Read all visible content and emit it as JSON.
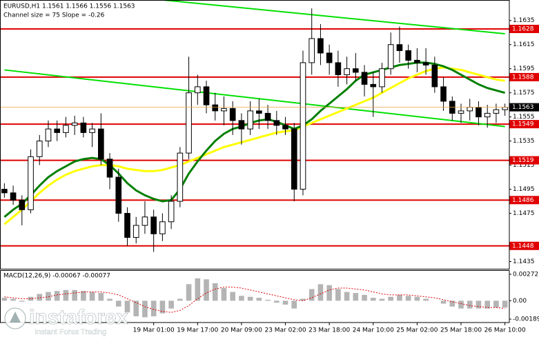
{
  "chart_data": {
    "type": "candlestick",
    "title": "EURUSD,H1  1.1561 1.1566 1.1556 1.1563",
    "subtitle": "Channel size = 75 Slope = -0.26",
    "categories": [
      null,
      null,
      null,
      null,
      null,
      null,
      null,
      null,
      null,
      null,
      null,
      null,
      null,
      null,
      null,
      null,
      null,
      "19 Mar 01:00",
      null,
      null,
      null,
      null,
      "19 Mar 17:00",
      null,
      null,
      null,
      null,
      "20 Mar 09:00",
      null,
      null,
      null,
      null,
      "23 Mar 02:00",
      null,
      null,
      null,
      null,
      "23 Mar 18:00",
      null,
      null,
      null,
      null,
      "24 Mar 10:00",
      null,
      null,
      null,
      null,
      "25 Mar 02:00",
      null,
      null,
      null,
      null,
      "25 Mar 18:00",
      null,
      null,
      null,
      null,
      "26 Mar 10:00"
    ],
    "open": [
      1.1495,
      1.1492,
      1.1486,
      1.1478,
      1.1522,
      1.1535,
      1.1545,
      1.1542,
      1.1548,
      1.155,
      1.1542,
      1.1545,
      1.152,
      1.1505,
      1.1475,
      1.1455,
      1.1465,
      1.1472,
      1.1458,
      1.1468,
      1.1485,
      1.1525,
      1.1575,
      1.158,
      1.1565,
      1.156,
      1.1562,
      1.1552,
      1.1545,
      1.156,
      1.1558,
      1.1552,
      1.1548,
      1.1545,
      1.1495,
      1.16,
      1.162,
      1.1608,
      1.16,
      1.159,
      1.1595,
      1.1592,
      1.1582,
      1.158,
      1.1595,
      1.1615,
      1.161,
      1.1602,
      1.16,
      1.1598,
      1.158,
      1.1568,
      1.1558,
      1.156,
      1.1563,
      1.1555,
      1.1558,
      1.1561
    ],
    "high": [
      1.15,
      1.1498,
      1.149,
      1.1528,
      1.154,
      1.1552,
      1.1552,
      1.1555,
      1.1556,
      1.1555,
      1.155,
      1.1558,
      1.1525,
      1.1512,
      1.148,
      1.1472,
      1.1485,
      1.1478,
      1.1475,
      1.149,
      1.153,
      1.1605,
      1.159,
      1.1585,
      1.1575,
      1.1572,
      1.1568,
      1.1558,
      1.1568,
      1.157,
      1.1565,
      1.156,
      1.1555,
      1.155,
      1.161,
      1.1645,
      1.1632,
      1.1615,
      1.161,
      1.1605,
      1.1608,
      1.1598,
      1.1592,
      1.16,
      1.1625,
      1.163,
      1.1615,
      1.1612,
      1.1612,
      1.1605,
      1.1588,
      1.1572,
      1.1566,
      1.157,
      1.1568,
      1.1565,
      1.1566,
      1.1566
    ],
    "low": [
      1.1488,
      1.1482,
      1.1465,
      1.1475,
      1.1515,
      1.153,
      1.1535,
      1.1538,
      1.154,
      1.1538,
      1.153,
      1.1515,
      1.1495,
      1.1468,
      1.1448,
      1.145,
      1.1458,
      1.1443,
      1.1452,
      1.1462,
      1.148,
      1.152,
      1.1565,
      1.1558,
      1.1552,
      1.1548,
      1.154,
      1.1532,
      1.154,
      1.1545,
      1.1545,
      1.154,
      1.154,
      1.1485,
      1.149,
      1.159,
      1.1598,
      1.159,
      1.158,
      1.1582,
      1.1585,
      1.1572,
      1.1555,
      1.1575,
      1.159,
      1.16,
      1.1595,
      1.1592,
      1.159,
      1.1575,
      1.156,
      1.1552,
      1.155,
      1.1552,
      1.1548,
      1.1546,
      1.155,
      1.1556
    ],
    "close": [
      1.1492,
      1.1486,
      1.1478,
      1.1522,
      1.1535,
      1.1545,
      1.1542,
      1.1548,
      1.155,
      1.1542,
      1.1545,
      1.152,
      1.1505,
      1.1475,
      1.1455,
      1.1465,
      1.1472,
      1.1458,
      1.1468,
      1.1485,
      1.1525,
      1.1575,
      1.158,
      1.1565,
      1.156,
      1.1562,
      1.1552,
      1.1545,
      1.156,
      1.1558,
      1.1552,
      1.1548,
      1.1545,
      1.1495,
      1.16,
      1.162,
      1.1608,
      1.16,
      1.159,
      1.1595,
      1.1592,
      1.1582,
      1.158,
      1.1595,
      1.1615,
      1.161,
      1.1602,
      1.16,
      1.1598,
      1.158,
      1.1568,
      1.1558,
      1.156,
      1.1563,
      1.1555,
      1.1558,
      1.1561,
      1.1563
    ],
    "moving_averages": [
      {
        "color": "#ffff00",
        "values": [
          1.1466,
          1.1472,
          1.1478,
          1.1485,
          1.1492,
          1.1498,
          1.1503,
          1.1507,
          1.151,
          1.1512,
          1.1514,
          1.1515,
          1.1515,
          1.1514,
          1.1512,
          1.1511,
          1.151,
          1.151,
          1.1511,
          1.1513,
          1.1515,
          1.1518,
          1.1521,
          1.1524,
          1.1527,
          1.153,
          1.1532,
          1.1534,
          1.1536,
          1.1538,
          1.154,
          1.1542,
          1.1543,
          1.1544,
          1.1547,
          1.155,
          1.1553,
          1.1556,
          1.1559,
          1.1562,
          1.1565,
          1.1568,
          1.1571,
          1.1575,
          1.1579,
          1.1583,
          1.1587,
          1.159,
          1.1593,
          1.1595,
          1.1596,
          1.1595,
          1.1594,
          1.1592,
          1.159,
          1.1588,
          1.1586,
          1.1585
        ]
      },
      {
        "color": "#008000",
        "values": [
          1.1472,
          1.1478,
          1.1483,
          1.149,
          1.1498,
          1.1505,
          1.151,
          1.1514,
          1.1518,
          1.152,
          1.1521,
          1.152,
          1.1515,
          1.1508,
          1.15,
          1.1494,
          1.149,
          1.1487,
          1.1485,
          1.1486,
          1.1495,
          1.1508,
          1.1518,
          1.1527,
          1.1535,
          1.1541,
          1.1545,
          1.1547,
          1.155,
          1.1552,
          1.1553,
          1.1551,
          1.1548,
          1.1545,
          1.1548,
          1.1553,
          1.156,
          1.1566,
          1.1572,
          1.1578,
          1.1585,
          1.159,
          1.1592,
          1.1594,
          1.1596,
          1.1598,
          1.1599,
          1.16,
          1.16,
          1.1599,
          1.1597,
          1.1594,
          1.159,
          1.1586,
          1.1582,
          1.1579,
          1.1577,
          1.1575
        ]
      }
    ],
    "trend_lines": [
      {
        "color": "#00e000",
        "start": 1.1665,
        "end": 1.1624
      },
      {
        "color": "#00e000",
        "start": 1.1594,
        "end": 1.1547
      }
    ],
    "levels": [
      {
        "value": 1.1628,
        "color": "#e00000"
      },
      {
        "value": 1.1588,
        "color": "#e00000"
      },
      {
        "value": 1.1549,
        "color": "#e00000"
      },
      {
        "value": 1.1519,
        "color": "#e00000"
      },
      {
        "value": 1.1486,
        "color": "#e00000"
      },
      {
        "value": 1.1448,
        "color": "#e00000"
      }
    ],
    "current_price": 1.1563,
    "ylim": [
      1.1429,
      1.1652
    ],
    "yticks": [
      1.1635,
      1.1615,
      1.1595,
      1.1575,
      1.1555,
      1.1535,
      1.1515,
      1.1495,
      1.1475,
      1.1435
    ],
    "macd": {
      "title": "MACD(12,26,9) -0.00067 -0.00077",
      "histogram_color": "#b4b4b4",
      "signal_color": "#e00000",
      "histogram": [
        0.0003,
        0.0002,
        -0.0001,
        0.0004,
        0.0007,
        0.0009,
        0.001,
        0.0011,
        0.0011,
        0.001,
        0.0009,
        0.0008,
        0.0002,
        -0.0006,
        -0.0012,
        -0.0016,
        -0.0017,
        -0.0016,
        -0.0013,
        -0.0008,
        0.0002,
        0.0017,
        0.0023,
        0.0022,
        0.0018,
        0.0013,
        0.0009,
        0.0005,
        0.0004,
        0.0003,
        0.0001,
        -0.0002,
        -0.0004,
        -0.0008,
        0.0002,
        0.0012,
        0.0017,
        0.0016,
        0.0012,
        0.0009,
        0.0008,
        0.0006,
        0.0003,
        0.0002,
        0.0004,
        0.0006,
        0.0005,
        0.0004,
        0.0002,
        0.0,
        -0.0003,
        -0.0006,
        -0.0008,
        -0.0008,
        -0.0008,
        -0.0008,
        -0.0007,
        -0.0007
      ],
      "signal": [
        0.0004,
        0.0003,
        0.0002,
        0.0002,
        0.0003,
        0.0004,
        0.0006,
        0.0007,
        0.0008,
        0.0009,
        0.0009,
        0.0009,
        0.0008,
        0.0006,
        0.0002,
        -0.0002,
        -0.0006,
        -0.0009,
        -0.0011,
        -0.0012,
        -0.001,
        -0.0005,
        0.0002,
        0.0008,
        0.0012,
        0.0014,
        0.0014,
        0.0013,
        0.0011,
        0.0009,
        0.0007,
        0.0005,
        0.0003,
        0.0001,
        0.0,
        0.0003,
        0.0007,
        0.0011,
        0.0013,
        0.0013,
        0.0012,
        0.0011,
        0.0009,
        0.0007,
        0.0006,
        0.0006,
        0.0006,
        0.0005,
        0.0004,
        0.0003,
        0.0001,
        -0.0001,
        -0.0003,
        -0.0005,
        -0.0006,
        -0.0007,
        -0.0007,
        -0.0008
      ],
      "ylim": [
        -0.00224,
        0.00307
      ],
      "yticks": [
        0.00272,
        {
          "value": 0,
          "label": "0.00"
        },
        -0.00189
      ]
    },
    "watermark": {
      "brand": "instaforex",
      "tagline": "Instant Forex Trading"
    }
  }
}
